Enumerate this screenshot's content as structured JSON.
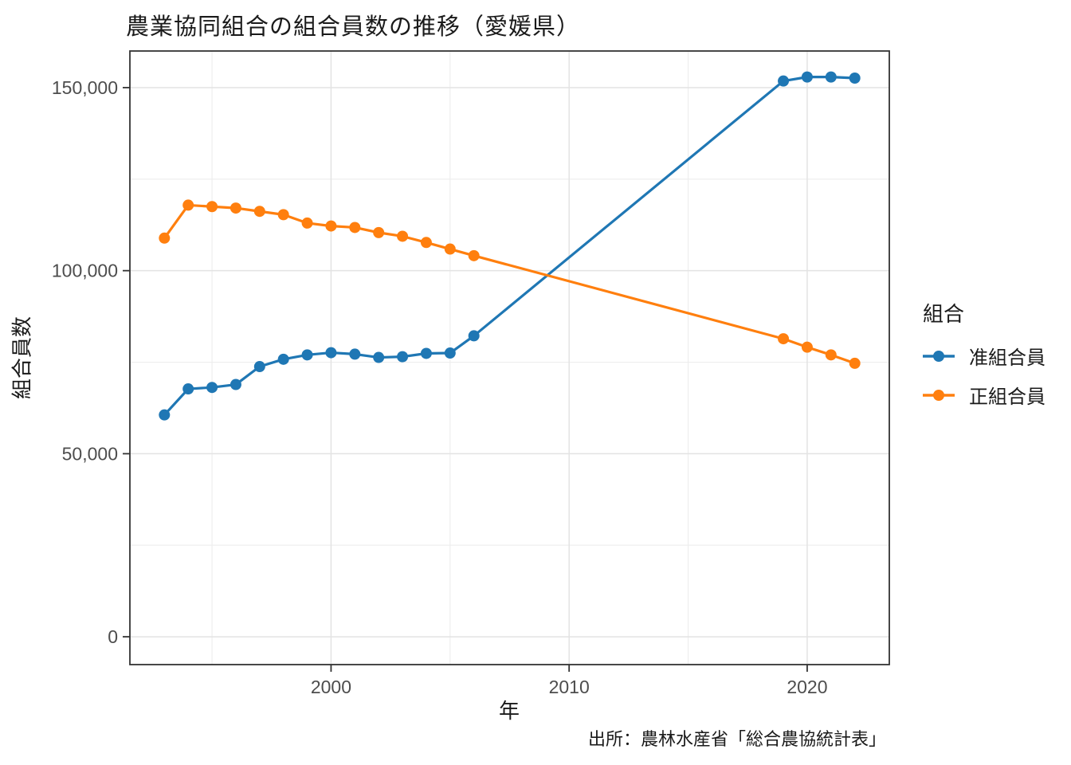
{
  "title": "農業協同組合の組合員数の推移（愛媛県）",
  "source_note": "出所：農林水産省「総合農協統計表」",
  "legend": {
    "title": "組合",
    "items": [
      {
        "label": "准組合員",
        "color": "#1f77b4"
      },
      {
        "label": "正組合員",
        "color": "#ff7f0e"
      }
    ]
  },
  "colors": {
    "associate_member": "#1f77b4",
    "regular_member": "#ff7f0e",
    "grid_major": "#e3e3e3",
    "grid_minor": "#ededed",
    "panel_border": "#333333",
    "tick_label": "#4d4d4d"
  },
  "chart_data": {
    "type": "line",
    "title": "農業協同組合の組合員数の推移（愛媛県）",
    "xlabel": "年",
    "ylabel": "組合員数",
    "grid": true,
    "legend_position": "right",
    "xlim": [
      1991.55,
      2023.45
    ],
    "ylim": [
      -7600,
      160000
    ],
    "x_ticks": [
      2000,
      2010,
      2020
    ],
    "x_minor_ticks": [
      1995,
      2005,
      2015
    ],
    "y_ticks": [
      0,
      50000,
      100000,
      150000
    ],
    "y_tick_labels": [
      "0",
      "50,000",
      "100,000",
      "150,000"
    ],
    "y_minor_ticks": [
      25000,
      75000,
      125000
    ],
    "x": [
      1993,
      1994,
      1995,
      1996,
      1997,
      1998,
      1999,
      2000,
      2001,
      2002,
      2003,
      2004,
      2005,
      2006,
      2019,
      2020,
      2021,
      2022
    ],
    "series": [
      {
        "name": "准組合員",
        "color": "#1f77b4",
        "values": [
          60600,
          67700,
          68100,
          68900,
          73800,
          75800,
          77000,
          77600,
          77200,
          76300,
          76500,
          77400,
          77500,
          82200,
          151800,
          152900,
          152900,
          152600
        ]
      },
      {
        "name": "正組合員",
        "color": "#ff7f0e",
        "values": [
          108900,
          117900,
          117500,
          117100,
          116200,
          115300,
          113000,
          112200,
          111800,
          110400,
          109400,
          107700,
          105900,
          104100,
          81400,
          79100,
          77000,
          74700
        ]
      }
    ]
  }
}
